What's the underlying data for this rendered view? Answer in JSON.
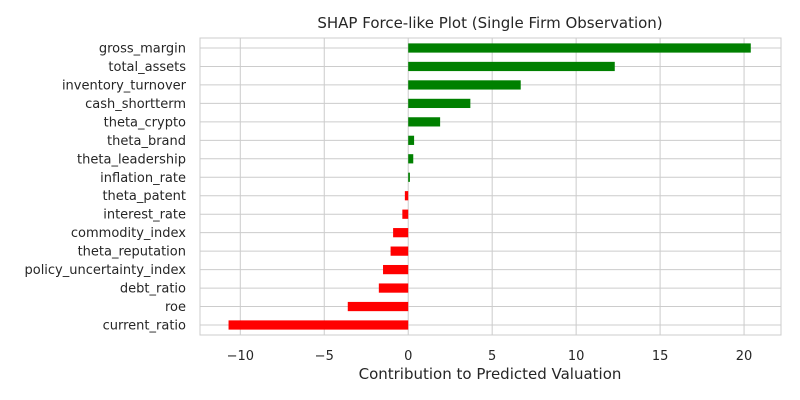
{
  "chart_data": {
    "type": "bar",
    "orientation": "horizontal",
    "title": "SHAP Force-like Plot (Single Firm Observation)",
    "xlabel": "Contribution to Predicted Valuation",
    "ylabel": "",
    "xlim": [
      -12.4,
      22.2
    ],
    "x_ticks": [
      -10,
      -5,
      0,
      5,
      10,
      15,
      20
    ],
    "x_tick_labels": [
      "−10",
      "−5",
      "0",
      "5",
      "10",
      "15",
      "20"
    ],
    "grid": true,
    "positive_color": "#008000",
    "negative_color": "#ff0000",
    "categories": [
      "gross_margin",
      "total_assets",
      "inventory_turnover",
      "cash_shortterm",
      "theta_crypto",
      "theta_brand",
      "theta_leadership",
      "inflation_rate",
      "theta_patent",
      "interest_rate",
      "commodity_index",
      "theta_reputation",
      "policy_uncertainty_index",
      "debt_ratio",
      "roe",
      "current_ratio"
    ],
    "values": [
      20.4,
      12.3,
      6.7,
      3.7,
      1.9,
      0.35,
      0.3,
      0.1,
      -0.2,
      -0.35,
      -0.9,
      -1.05,
      -1.5,
      -1.75,
      -3.6,
      -10.7
    ]
  }
}
